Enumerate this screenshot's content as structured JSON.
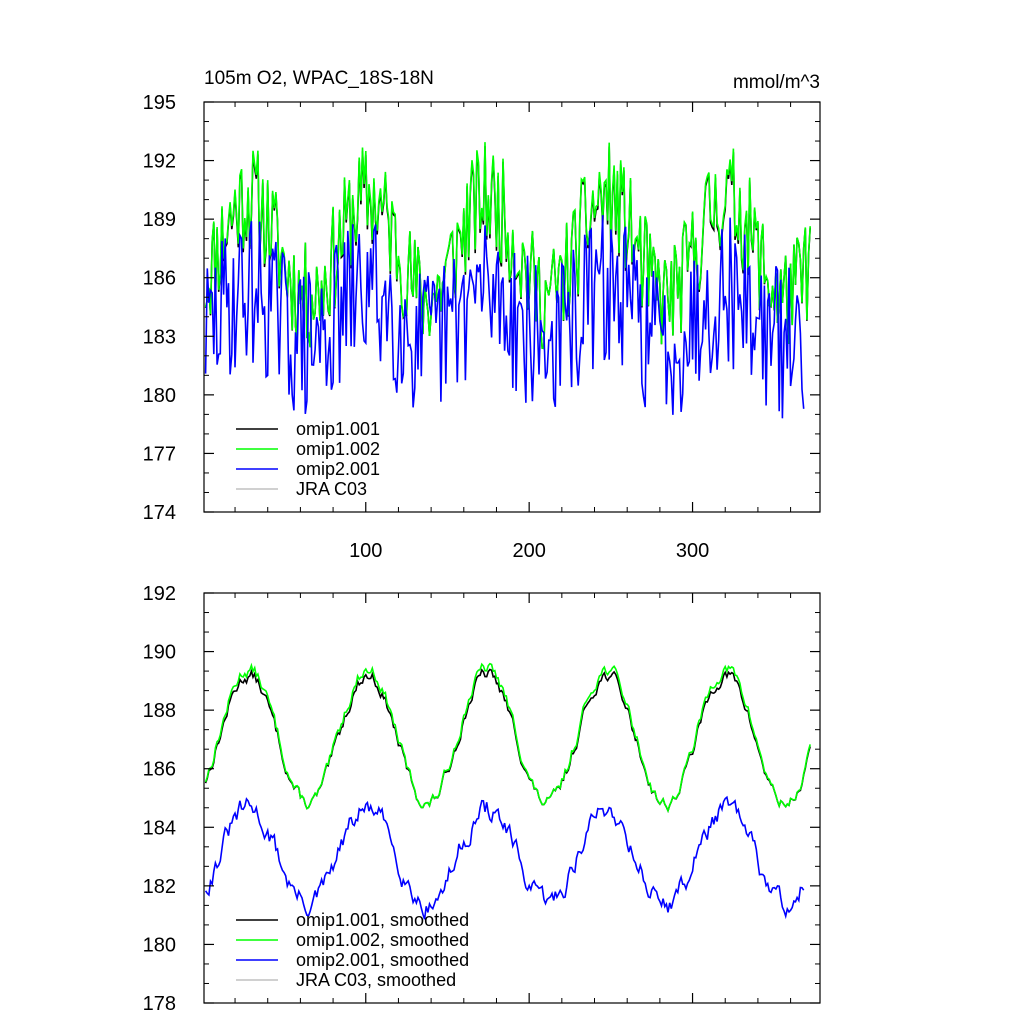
{
  "figure_title": "105m O2, WPAC_18S-18N",
  "units": "mmol/m^3",
  "chart_data": [
    {
      "type": "line",
      "title": "105m O2, WPAC_18S-18N",
      "xlim": [
        1,
        378
      ],
      "ylim": [
        174,
        195
      ],
      "xticks": [
        100,
        200,
        300
      ],
      "xtick_labels": [
        "100",
        "200",
        "300"
      ],
      "yticks": [
        174,
        177,
        180,
        183,
        186,
        189,
        192,
        195
      ],
      "ytick_labels": [
        "174",
        "177",
        "180",
        "183",
        "186",
        "189",
        "192",
        "195"
      ],
      "legend_position": "bottom-left",
      "series": [
        {
          "name": "omip1.001",
          "color": "#000000",
          "base": 187.5,
          "amp": 2.5,
          "noise": 2.8,
          "x_end": 372,
          "seed": 11
        },
        {
          "name": "omip1.002",
          "color": "#00ff00",
          "base": 187.6,
          "amp": 2.6,
          "noise": 2.8,
          "x_end": 372,
          "seed": 11
        },
        {
          "name": "omip2.001",
          "color": "#0000ff",
          "base": 184.0,
          "amp": 1.4,
          "noise": 4.0,
          "x_end": 368,
          "seed": 29
        },
        {
          "name": "JRA C03",
          "color": "#c0c0c0",
          "base": null,
          "amp": 0,
          "noise": 0,
          "x_end": 0,
          "seed": 0
        }
      ]
    },
    {
      "type": "line",
      "xlim": [
        1,
        378
      ],
      "ylim": [
        178,
        192
      ],
      "xticks": [
        100,
        200,
        300
      ],
      "yticks": [
        178,
        180,
        182,
        184,
        186,
        188,
        190,
        192
      ],
      "ytick_labels": [
        "178",
        "180",
        "182",
        "184",
        "186",
        "188",
        "190",
        "192"
      ],
      "legend_position": "bottom-left",
      "series": [
        {
          "name": "omip1.001, smoothed",
          "color": "#000000",
          "base": 187.0,
          "amp": 2.2,
          "noise": 0.6,
          "x_end": 372,
          "seed": 13
        },
        {
          "name": "omip1.002, smoothed",
          "color": "#00ff00",
          "base": 187.1,
          "amp": 2.3,
          "noise": 0.6,
          "x_end": 372,
          "seed": 13
        },
        {
          "name": "omip2.001, smoothed",
          "color": "#0000ff",
          "base": 183.0,
          "amp": 1.6,
          "noise": 1.0,
          "x_end": 368,
          "seed": 31
        },
        {
          "name": "JRA C03, smoothed",
          "color": "#c0c0c0",
          "base": null,
          "amp": 0,
          "noise": 0,
          "x_end": 0,
          "seed": 0
        }
      ]
    }
  ]
}
